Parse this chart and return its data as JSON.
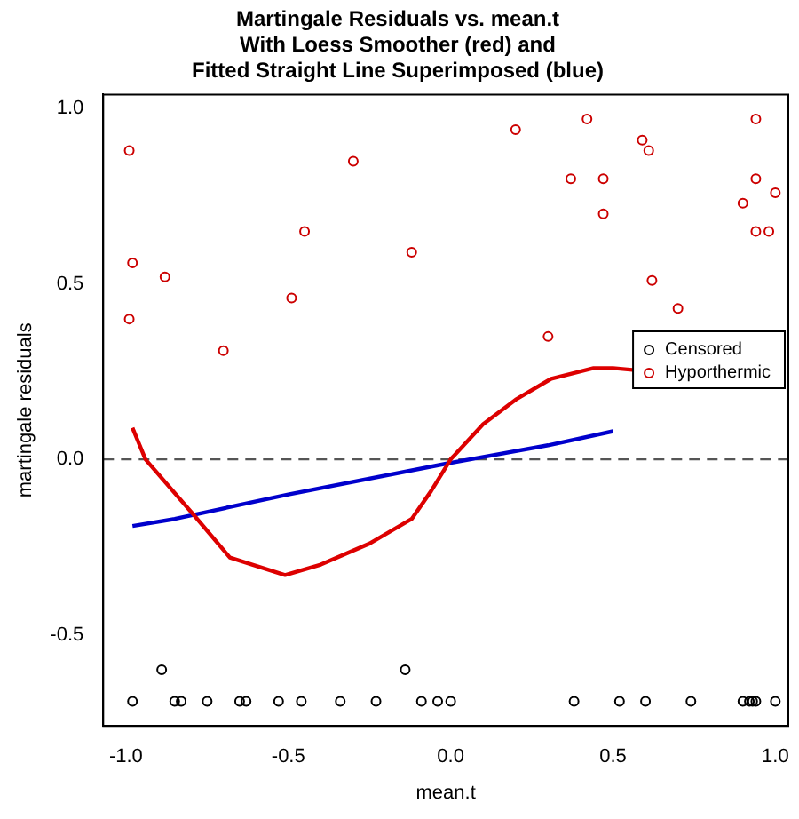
{
  "chart_data": {
    "type": "scatter",
    "title": [
      "Martingale Residuals vs. mean.t",
      "With Loess Smoother (red) and",
      "Fitted Straight Line Superimposed (blue)"
    ],
    "xlabel": "mean.t",
    "ylabel": "martingale residuals",
    "xlim": [
      -1.07,
      1.04
    ],
    "xticks": [
      {
        "value": -1,
        "label": "-1.0"
      },
      {
        "value": -0.5,
        "label": "-0.5"
      },
      {
        "value": 0,
        "label": "0.0"
      },
      {
        "value": 0.5,
        "label": "0.5"
      },
      {
        "value": 1,
        "label": "1.0"
      }
    ],
    "ylim": [
      -0.76,
      1.04
    ],
    "yticks": [
      {
        "value": -0.5,
        "label": "-0.5"
      },
      {
        "value": 0,
        "label": "0.0"
      },
      {
        "value": 0.5,
        "label": "0.5"
      },
      {
        "value": 1,
        "label": "1.0"
      }
    ],
    "grid": false,
    "legend": "right",
    "marker": "circle",
    "ref_lines": [
      {
        "axis": "y",
        "value": 0,
        "color": "#555555",
        "line_style": "dashed"
      }
    ],
    "series": [
      {
        "name": "Censored",
        "color": "#000000",
        "x": [
          -0.98,
          -0.89,
          -0.85,
          -0.83,
          -0.75,
          -0.65,
          -0.63,
          -0.53,
          -0.46,
          -0.34,
          -0.23,
          -0.14,
          -0.09,
          -0.04,
          0.0,
          0.38,
          0.52,
          0.6,
          0.74,
          0.9,
          0.92,
          0.93,
          0.94,
          1.0
        ],
        "values": [
          -0.69,
          -0.6,
          -0.69,
          -0.69,
          -0.69,
          -0.69,
          -0.69,
          -0.69,
          -0.69,
          -0.69,
          -0.69,
          -0.6,
          -0.69,
          -0.69,
          -0.69,
          -0.69,
          -0.69,
          -0.69,
          -0.69,
          -0.69,
          -0.69,
          -0.69,
          -0.69,
          -0.69
        ]
      },
      {
        "name": "Hyporthermic",
        "color": "#cc0000",
        "x": [
          -0.99,
          -0.98,
          -0.99,
          -0.88,
          -0.7,
          -0.49,
          -0.45,
          -0.3,
          -0.12,
          0.2,
          0.42,
          0.37,
          0.47,
          0.47,
          0.59,
          0.61,
          0.62,
          0.7,
          0.3,
          0.94,
          0.94,
          0.9,
          1.0,
          0.94,
          0.98
        ],
        "values": [
          0.88,
          0.56,
          0.4,
          0.52,
          0.31,
          0.46,
          0.65,
          0.85,
          0.59,
          0.94,
          0.97,
          0.8,
          0.8,
          0.7,
          0.91,
          0.88,
          0.51,
          0.43,
          0.35,
          0.97,
          0.8,
          0.73,
          0.76,
          0.65,
          0.65
        ]
      },
      {
        "type": "line",
        "color": "#dd0000",
        "marker": "none",
        "x": [
          -0.98,
          -0.94,
          -0.79,
          -0.68,
          -0.51,
          -0.4,
          -0.25,
          -0.12,
          -0.06,
          0.0,
          0.1,
          0.2,
          0.31,
          0.44,
          0.5,
          0.62
        ],
        "values": [
          0.09,
          0.0,
          -0.16,
          -0.28,
          -0.33,
          -0.3,
          -0.24,
          -0.17,
          -0.09,
          0.0,
          0.1,
          0.17,
          0.23,
          0.26,
          0.26,
          0.25
        ]
      },
      {
        "type": "line",
        "color": "#0000cc",
        "marker": "none",
        "x": [
          -0.98,
          -0.85,
          -0.5,
          0.0,
          0.3,
          0.5
        ],
        "values": [
          -0.19,
          -0.17,
          -0.1,
          -0.01,
          0.04,
          0.08
        ]
      }
    ]
  }
}
